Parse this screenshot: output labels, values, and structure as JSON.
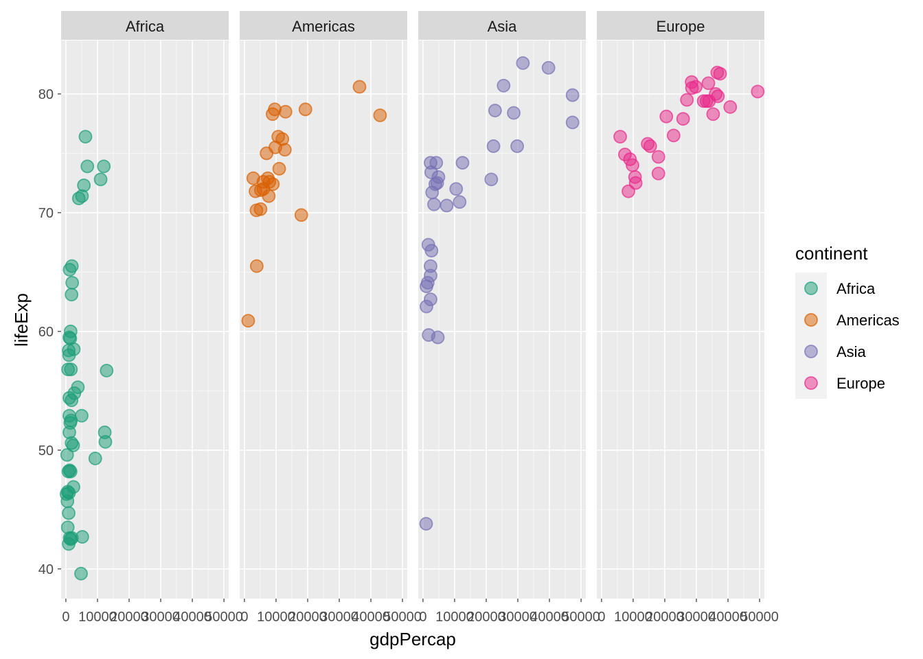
{
  "chart_data": {
    "type": "scatter",
    "facet_by": "continent",
    "xlabel": "gdpPercap",
    "ylabel": "lifeExp",
    "xlim": [
      -1500,
      51500
    ],
    "ylim": [
      37.5,
      84.5
    ],
    "x_ticks": [
      0,
      10000,
      20000,
      30000,
      40000,
      50000
    ],
    "x_tick_labels": [
      "0",
      "10000",
      "20000",
      "30000",
      "40000",
      "50000"
    ],
    "y_ticks": [
      40,
      50,
      60,
      70,
      80
    ],
    "y_tick_labels": [
      "40",
      "50",
      "60",
      "70",
      "80"
    ],
    "grid": true,
    "legend": {
      "title": "continent",
      "placement": "right"
    },
    "colors": {
      "Africa": "#1b9e77",
      "Americas": "#d95f02",
      "Asia": "#7570b3",
      "Europe": "#e7298a",
      "panel_bg": "#ebebeb",
      "strip_bg": "#d9d9d9",
      "grid": "#ffffff"
    },
    "series": [
      {
        "name": "Africa",
        "points": [
          [
            6200,
            76.4
          ],
          [
            6800,
            73.9
          ],
          [
            12000,
            73.9
          ],
          [
            5700,
            72.3
          ],
          [
            11000,
            72.8
          ],
          [
            4100,
            71.2
          ],
          [
            5100,
            71.4
          ],
          [
            1900,
            65.5
          ],
          [
            1200,
            65.2
          ],
          [
            2000,
            64.1
          ],
          [
            1800,
            63.1
          ],
          [
            1500,
            60.0
          ],
          [
            1100,
            59.5
          ],
          [
            1400,
            59.4
          ],
          [
            2500,
            58.5
          ],
          [
            900,
            58.4
          ],
          [
            1000,
            58.0
          ],
          [
            12900,
            56.7
          ],
          [
            700,
            56.8
          ],
          [
            1600,
            56.8
          ],
          [
            3800,
            55.3
          ],
          [
            2700,
            54.8
          ],
          [
            1100,
            54.4
          ],
          [
            1800,
            54.2
          ],
          [
            5000,
            52.9
          ],
          [
            1100,
            52.9
          ],
          [
            1600,
            52.5
          ],
          [
            1400,
            52.3
          ],
          [
            12300,
            51.5
          ],
          [
            1100,
            51.5
          ],
          [
            12500,
            50.7
          ],
          [
            1800,
            50.6
          ],
          [
            2300,
            50.4
          ],
          [
            9300,
            49.3
          ],
          [
            400,
            49.6
          ],
          [
            1200,
            48.3
          ],
          [
            800,
            48.2
          ],
          [
            1500,
            48.2
          ],
          [
            2400,
            46.9
          ],
          [
            600,
            46.5
          ],
          [
            1000,
            46.4
          ],
          [
            200,
            46.3
          ],
          [
            500,
            45.7
          ],
          [
            900,
            44.7
          ],
          [
            600,
            43.5
          ],
          [
            1200,
            42.6
          ],
          [
            1900,
            42.6
          ],
          [
            900,
            42.1
          ],
          [
            1500,
            42.5
          ],
          [
            5200,
            42.7
          ],
          [
            4800,
            39.6
          ]
        ]
      },
      {
        "name": "Americas",
        "points": [
          [
            36400,
            80.6
          ],
          [
            42900,
            78.2
          ],
          [
            9600,
            78.7
          ],
          [
            19300,
            78.7
          ],
          [
            13000,
            78.5
          ],
          [
            8900,
            78.3
          ],
          [
            10700,
            76.4
          ],
          [
            12000,
            76.2
          ],
          [
            9800,
            75.5
          ],
          [
            12800,
            75.3
          ],
          [
            7000,
            75.0
          ],
          [
            11000,
            73.7
          ],
          [
            2800,
            72.9
          ],
          [
            7400,
            72.9
          ],
          [
            6000,
            72.6
          ],
          [
            7900,
            72.6
          ],
          [
            9000,
            72.4
          ],
          [
            6000,
            72.0
          ],
          [
            5200,
            71.9
          ],
          [
            3500,
            71.8
          ],
          [
            7700,
            71.4
          ],
          [
            3800,
            70.2
          ],
          [
            5100,
            70.3
          ],
          [
            18000,
            69.8
          ],
          [
            3900,
            65.5
          ],
          [
            1200,
            60.9
          ]
        ]
      },
      {
        "name": "Asia",
        "points": [
          [
            31600,
            82.6
          ],
          [
            39700,
            82.2
          ],
          [
            25500,
            80.7
          ],
          [
            47300,
            79.9
          ],
          [
            22800,
            78.6
          ],
          [
            28700,
            78.4
          ],
          [
            47300,
            77.6
          ],
          [
            22300,
            75.6
          ],
          [
            29800,
            75.6
          ],
          [
            2400,
            74.2
          ],
          [
            4200,
            74.2
          ],
          [
            12500,
            74.2
          ],
          [
            2600,
            73.4
          ],
          [
            4900,
            73.0
          ],
          [
            3900,
            72.4
          ],
          [
            4500,
            72.5
          ],
          [
            21600,
            72.8
          ],
          [
            10500,
            72.0
          ],
          [
            2900,
            71.7
          ],
          [
            11600,
            70.9
          ],
          [
            3500,
            70.7
          ],
          [
            7500,
            70.6
          ],
          [
            1700,
            67.3
          ],
          [
            2700,
            66.8
          ],
          [
            2400,
            65.5
          ],
          [
            2400,
            64.7
          ],
          [
            1100,
            63.8
          ],
          [
            1500,
            64.1
          ],
          [
            2400,
            62.7
          ],
          [
            1100,
            62.1
          ],
          [
            1800,
            59.7
          ],
          [
            4700,
            59.5
          ],
          [
            1000,
            43.8
          ]
        ]
      },
      {
        "name": "Europe",
        "points": [
          [
            49400,
            80.2
          ],
          [
            36600,
            81.8
          ],
          [
            37500,
            81.7
          ],
          [
            28500,
            81.0
          ],
          [
            33800,
            80.9
          ],
          [
            29800,
            80.6
          ],
          [
            28600,
            80.5
          ],
          [
            36100,
            80.0
          ],
          [
            36800,
            79.8
          ],
          [
            32300,
            79.4
          ],
          [
            33200,
            79.4
          ],
          [
            34000,
            79.4
          ],
          [
            27000,
            79.5
          ],
          [
            40700,
            78.9
          ],
          [
            35300,
            78.3
          ],
          [
            20500,
            78.1
          ],
          [
            25800,
            77.9
          ],
          [
            22800,
            76.5
          ],
          [
            5900,
            76.4
          ],
          [
            14600,
            75.8
          ],
          [
            15400,
            75.6
          ],
          [
            7400,
            74.9
          ],
          [
            9000,
            74.5
          ],
          [
            18000,
            74.7
          ],
          [
            9800,
            74.0
          ],
          [
            10600,
            73.0
          ],
          [
            18000,
            73.3
          ],
          [
            10800,
            72.5
          ],
          [
            8500,
            71.8
          ]
        ]
      }
    ]
  }
}
